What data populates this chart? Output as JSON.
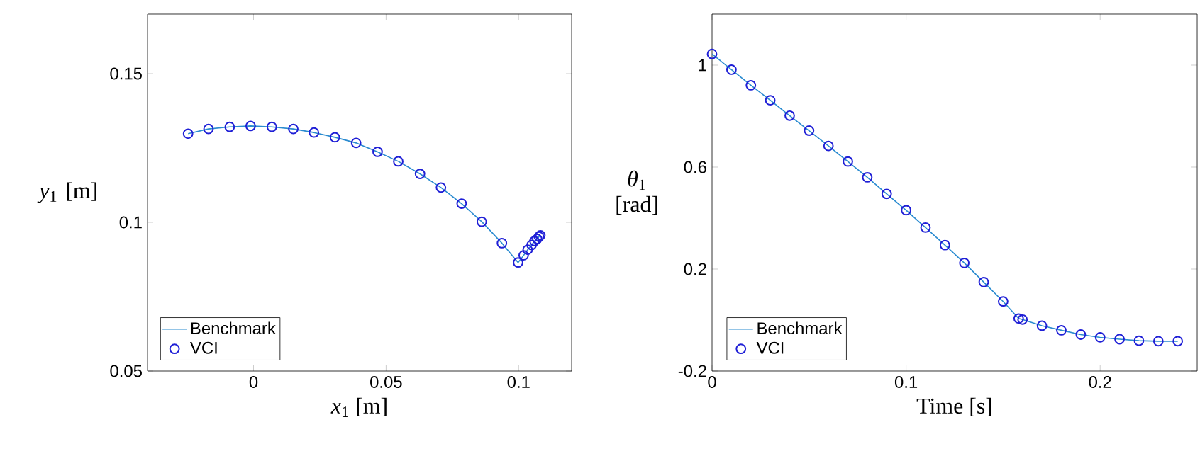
{
  "chart_data": [
    {
      "type": "line",
      "xlabel": "*x*$_{1}$ [m]",
      "ylabel": "*y*$_{1}$ [m]",
      "xlim": [
        -0.04,
        0.12
      ],
      "ylim": [
        0.05,
        0.17
      ],
      "xticks": [
        0,
        0.05,
        0.1
      ],
      "yticks": [
        0.05,
        0.1,
        0.15
      ],
      "legend": "bottom left",
      "series": [
        {
          "name": "Benchmark",
          "color": "#2a8bd0",
          "x": [
            -0.0247,
            -0.017,
            -0.009,
            -0.0011,
            0.0069,
            0.015,
            0.0228,
            0.0307,
            0.0387,
            0.0468,
            0.0546,
            0.0628,
            0.0707,
            0.0785,
            0.0861,
            0.0937,
            0.0998,
            0.1019,
            0.1034,
            0.1049,
            0.106,
            0.107,
            0.1077,
            0.1082
          ],
          "values": [
            0.1298,
            0.1314,
            0.1321,
            0.1324,
            0.1321,
            0.1314,
            0.1302,
            0.1286,
            0.1267,
            0.1237,
            0.1205,
            0.1163,
            0.1117,
            0.1063,
            0.1002,
            0.093,
            0.0865,
            0.0889,
            0.0908,
            0.0924,
            0.0937,
            0.0944,
            0.0952,
            0.0956
          ]
        },
        {
          "name": "VCI",
          "type": "scatter",
          "marker": "circle",
          "color": "#1f1fd6",
          "x": [
            -0.0247,
            -0.017,
            -0.009,
            -0.0011,
            0.0069,
            0.015,
            0.0228,
            0.0307,
            0.0387,
            0.0468,
            0.0546,
            0.0628,
            0.0707,
            0.0785,
            0.0861,
            0.0937,
            0.0998,
            0.1019,
            0.1034,
            0.1049,
            0.106,
            0.107,
            0.1077,
            0.1082
          ],
          "values": [
            0.1298,
            0.1314,
            0.1321,
            0.1324,
            0.1321,
            0.1314,
            0.1302,
            0.1286,
            0.1267,
            0.1237,
            0.1205,
            0.1163,
            0.1117,
            0.1063,
            0.1002,
            0.093,
            0.0865,
            0.0889,
            0.0908,
            0.0924,
            0.0937,
            0.0944,
            0.0952,
            0.0956
          ]
        }
      ]
    },
    {
      "type": "line",
      "xlabel": "Time [s]",
      "ylabel": "*θ*$_{1}$ [rad]",
      "xlim": [
        0,
        0.25
      ],
      "ylim": [
        -0.2,
        1.2
      ],
      "xticks": [
        0,
        0.1,
        0.2
      ],
      "yticks": [
        -0.2,
        0.2,
        0.6,
        1
      ],
      "legend": "bottom left",
      "series": [
        {
          "name": "Benchmark",
          "color": "#2a8bd0",
          "x": [
            0,
            0.01,
            0.02,
            0.03,
            0.04,
            0.05,
            0.06,
            0.07,
            0.08,
            0.09,
            0.1,
            0.11,
            0.12,
            0.13,
            0.14,
            0.15,
            0.158,
            0.16,
            0.17,
            0.18,
            0.19,
            0.2,
            0.21,
            0.22,
            0.23,
            0.24
          ],
          "values": [
            1.044,
            0.982,
            0.921,
            0.862,
            0.802,
            0.743,
            0.683,
            0.622,
            0.56,
            0.495,
            0.431,
            0.363,
            0.294,
            0.224,
            0.149,
            0.073,
            0.006,
            0.002,
            -0.022,
            -0.04,
            -0.057,
            -0.068,
            -0.075,
            -0.081,
            -0.083,
            -0.083
          ]
        },
        {
          "name": "VCI",
          "type": "scatter",
          "marker": "circle",
          "color": "#1f1fd6",
          "x": [
            0,
            0.01,
            0.02,
            0.03,
            0.04,
            0.05,
            0.06,
            0.07,
            0.08,
            0.09,
            0.1,
            0.11,
            0.12,
            0.13,
            0.14,
            0.15,
            0.158,
            0.16,
            0.17,
            0.18,
            0.19,
            0.2,
            0.21,
            0.22,
            0.23,
            0.24
          ],
          "values": [
            1.044,
            0.982,
            0.921,
            0.862,
            0.802,
            0.743,
            0.683,
            0.622,
            0.56,
            0.495,
            0.431,
            0.363,
            0.294,
            0.224,
            0.149,
            0.073,
            0.006,
            0.002,
            -0.022,
            -0.04,
            -0.057,
            -0.068,
            -0.075,
            -0.081,
            -0.083,
            -0.083
          ]
        }
      ]
    }
  ]
}
